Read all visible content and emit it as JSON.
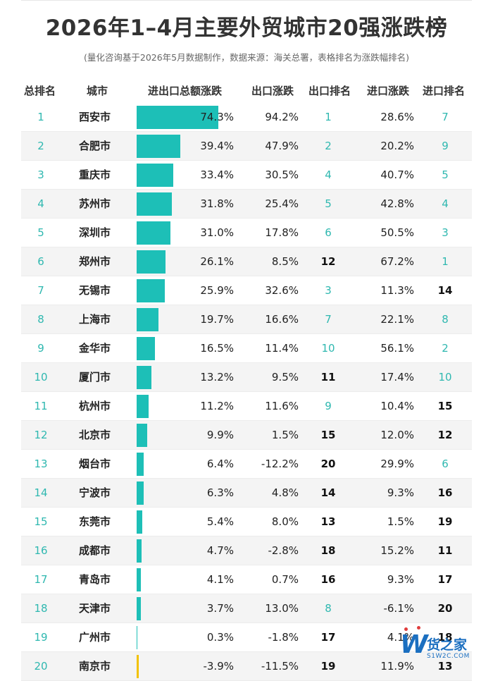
{
  "title": "2026年1–4月主要外贸城市20强涨跌榜",
  "subtitle": "(量化咨询基于2026年5月数据制作，数据来源：海关总署，表格排名为涨跌幅排名)",
  "colors": {
    "accent": "#2fb8b0",
    "bar": "#1dbfb7",
    "bar_negative": "#f2c200",
    "logo": "#1b6fc0"
  },
  "columns": [
    "总排名",
    "城市",
    "进出口总额涨跌",
    "出口涨跌",
    "出口排名",
    "进口涨跌",
    "进口排名"
  ],
  "chart_data": {
    "type": "table",
    "columns": [
      "总排名",
      "城市",
      "进出口总额涨跌",
      "出口涨跌",
      "出口排名",
      "进口涨跌",
      "进口排名"
    ],
    "rows": [
      {
        "rank": "1",
        "city": "西安市",
        "total": "74.3%",
        "total_value": 74.3,
        "export": "94.2%",
        "export_rank": "1",
        "import": "28.6%",
        "import_rank": "7"
      },
      {
        "rank": "2",
        "city": "合肥市",
        "total": "39.4%",
        "total_value": 39.4,
        "export": "47.9%",
        "export_rank": "2",
        "import": "20.2%",
        "import_rank": "9"
      },
      {
        "rank": "3",
        "city": "重庆市",
        "total": "33.4%",
        "total_value": 33.4,
        "export": "30.5%",
        "export_rank": "4",
        "import": "40.7%",
        "import_rank": "5"
      },
      {
        "rank": "4",
        "city": "苏州市",
        "total": "31.8%",
        "total_value": 31.8,
        "export": "25.4%",
        "export_rank": "5",
        "import": "42.8%",
        "import_rank": "4"
      },
      {
        "rank": "5",
        "city": "深圳市",
        "total": "31.0%",
        "total_value": 31.0,
        "export": "17.8%",
        "export_rank": "6",
        "import": "50.5%",
        "import_rank": "3"
      },
      {
        "rank": "6",
        "city": "郑州市",
        "total": "26.1%",
        "total_value": 26.1,
        "export": "8.5%",
        "export_rank": "12",
        "import": "67.2%",
        "import_rank": "1"
      },
      {
        "rank": "7",
        "city": "无锡市",
        "total": "25.9%",
        "total_value": 25.9,
        "export": "32.6%",
        "export_rank": "3",
        "import": "11.3%",
        "import_rank": "14"
      },
      {
        "rank": "8",
        "city": "上海市",
        "total": "19.7%",
        "total_value": 19.7,
        "export": "16.6%",
        "export_rank": "7",
        "import": "22.1%",
        "import_rank": "8"
      },
      {
        "rank": "9",
        "city": "金华市",
        "total": "16.5%",
        "total_value": 16.5,
        "export": "11.4%",
        "export_rank": "10",
        "import": "56.1%",
        "import_rank": "2"
      },
      {
        "rank": "10",
        "city": "厦门市",
        "total": "13.2%",
        "total_value": 13.2,
        "export": "9.5%",
        "export_rank": "11",
        "import": "17.4%",
        "import_rank": "10"
      },
      {
        "rank": "11",
        "city": "杭州市",
        "total": "11.2%",
        "total_value": 11.2,
        "export": "11.6%",
        "export_rank": "9",
        "import": "10.4%",
        "import_rank": "15"
      },
      {
        "rank": "12",
        "city": "北京市",
        "total": "9.9%",
        "total_value": 9.9,
        "export": "1.5%",
        "export_rank": "15",
        "import": "12.0%",
        "import_rank": "12"
      },
      {
        "rank": "13",
        "city": "烟台市",
        "total": "6.4%",
        "total_value": 6.4,
        "export": "-12.2%",
        "export_rank": "20",
        "import": "29.9%",
        "import_rank": "6"
      },
      {
        "rank": "14",
        "city": "宁波市",
        "total": "6.3%",
        "total_value": 6.3,
        "export": "4.8%",
        "export_rank": "14",
        "import": "9.3%",
        "import_rank": "16"
      },
      {
        "rank": "15",
        "city": "东莞市",
        "total": "5.4%",
        "total_value": 5.4,
        "export": "8.0%",
        "export_rank": "13",
        "import": "1.5%",
        "import_rank": "19"
      },
      {
        "rank": "16",
        "city": "成都市",
        "total": "4.7%",
        "total_value": 4.7,
        "export": "-2.8%",
        "export_rank": "18",
        "import": "15.2%",
        "import_rank": "11"
      },
      {
        "rank": "17",
        "city": "青岛市",
        "total": "4.1%",
        "total_value": 4.1,
        "export": "0.7%",
        "export_rank": "16",
        "import": "9.3%",
        "import_rank": "17"
      },
      {
        "rank": "18",
        "city": "天津市",
        "total": "3.7%",
        "total_value": 3.7,
        "export": "13.0%",
        "export_rank": "8",
        "import": "-6.1%",
        "import_rank": "20"
      },
      {
        "rank": "19",
        "city": "广州市",
        "total": "0.3%",
        "total_value": 0.3,
        "export": "-1.8%",
        "export_rank": "17",
        "import": "4.1%",
        "import_rank": "18"
      },
      {
        "rank": "20",
        "city": "南京市",
        "total": "-3.9%",
        "total_value": -3.9,
        "export": "-11.5%",
        "export_rank": "19",
        "import": "11.9%",
        "import_rank": "13"
      }
    ]
  },
  "logo": {
    "mark": "W",
    "name": "货之家",
    "url": "S1W2C.COM"
  }
}
